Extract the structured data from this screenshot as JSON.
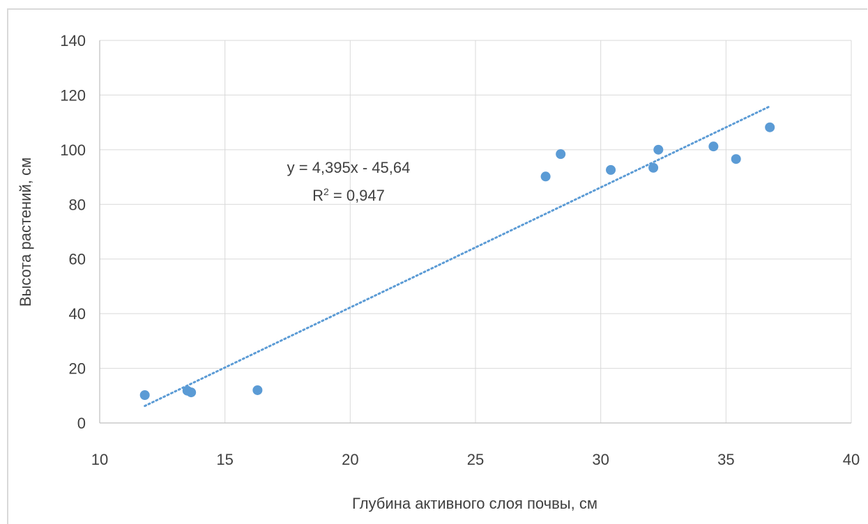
{
  "chart_data": {
    "type": "scatter",
    "title": "",
    "xlabel": "Глубина активного слоя почвы, см",
    "ylabel": "Высота растений, см",
    "xlim": [
      10,
      40
    ],
    "ylim": [
      0,
      140
    ],
    "x_ticks": [
      10,
      15,
      20,
      25,
      30,
      35,
      40
    ],
    "y_ticks": [
      0,
      20,
      40,
      60,
      80,
      100,
      120,
      140
    ],
    "grid": true,
    "legend": "none",
    "point_color": "#5b9bd5",
    "trendline_color": "#5b9bd5",
    "series": [
      {
        "points": [
          {
            "x": 11.8,
            "y": 10.2
          },
          {
            "x": 13.5,
            "y": 11.8
          },
          {
            "x": 13.65,
            "y": 11.2
          },
          {
            "x": 16.3,
            "y": 12.0
          },
          {
            "x": 27.8,
            "y": 90.2
          },
          {
            "x": 28.4,
            "y": 98.4
          },
          {
            "x": 30.4,
            "y": 92.6
          },
          {
            "x": 32.1,
            "y": 93.4
          },
          {
            "x": 32.3,
            "y": 100.0
          },
          {
            "x": 34.5,
            "y": 101.2
          },
          {
            "x": 35.4,
            "y": 96.6
          },
          {
            "x": 36.75,
            "y": 108.2
          }
        ]
      }
    ],
    "trendline": {
      "type": "linear",
      "slope": 4.395,
      "intercept": -45.64,
      "x_range": [
        11.8,
        36.7
      ],
      "style": "dotted"
    },
    "annotations": {
      "equation": "y = 4,395x - 45,64",
      "r_squared_prefix": "R",
      "r_squared_exp": "2",
      "r_squared_value": " = 0,947"
    }
  }
}
